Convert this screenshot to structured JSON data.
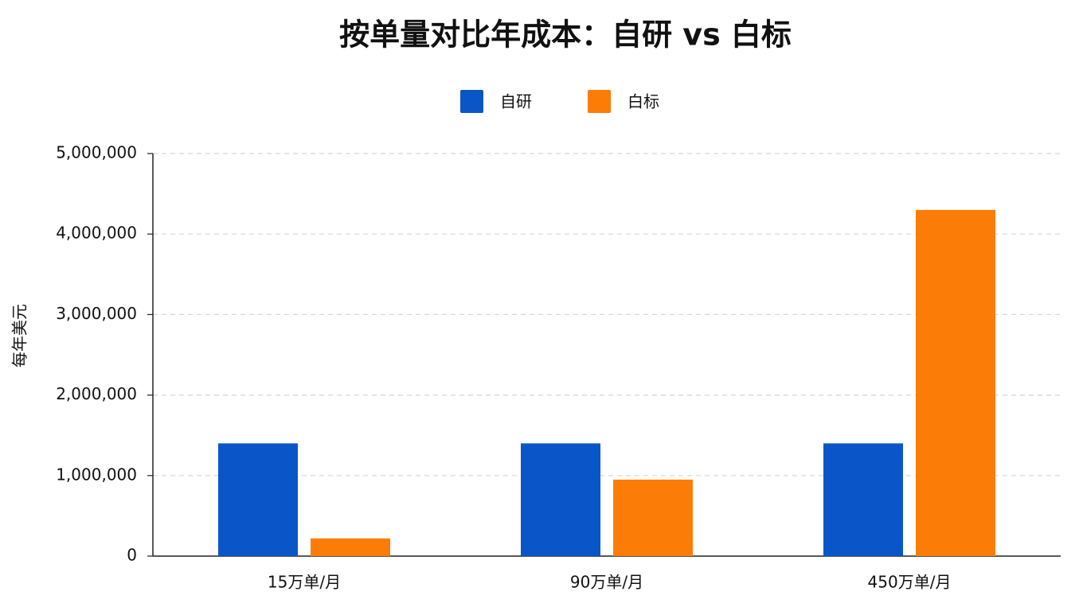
{
  "chart_data": {
    "type": "bar",
    "title": "按单量对比年成本：自研 vs 白标",
    "y_label": "每年美元",
    "categories": [
      "15万单/月",
      "90万单/月",
      "450万单/月"
    ],
    "series": [
      {
        "name": "自研",
        "color": "#0a56c8",
        "values": [
          1400000,
          1400000,
          1400000
        ]
      },
      {
        "name": "白标",
        "color": "#fb7d07",
        "values": [
          220000,
          950000,
          4300000
        ]
      }
    ],
    "ylim": [
      0,
      5000000
    ],
    "yticks": [
      0,
      {
        "value": 1000000,
        "label": "1,000,000"
      },
      {
        "value": 2000000,
        "label": "2,000,000"
      },
      {
        "value": 3000000,
        "label": "3,000,000"
      },
      {
        "value": 4000000,
        "label": "4,000,000"
      },
      {
        "value": 5000000,
        "label": "5,000,000"
      }
    ],
    "grid": true,
    "legend": "top"
  }
}
